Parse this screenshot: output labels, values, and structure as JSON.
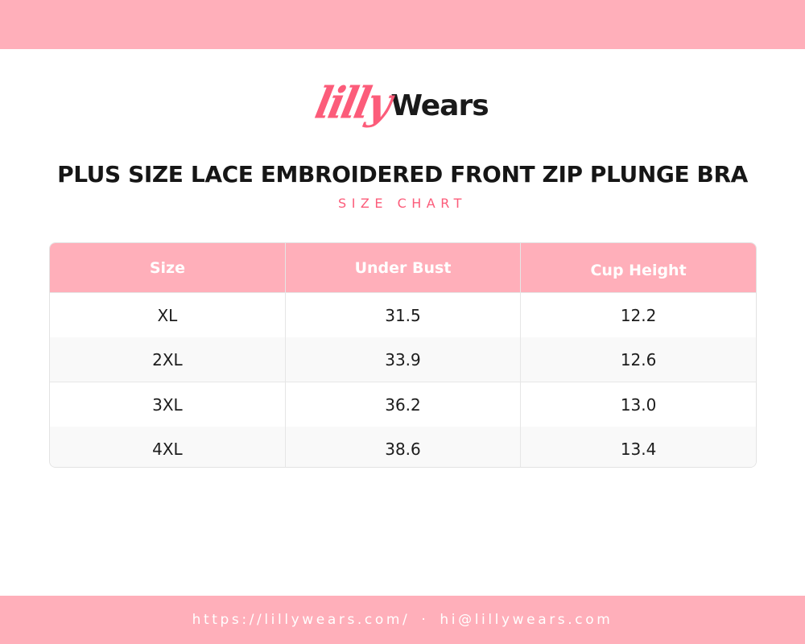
{
  "colors": {
    "accent_bar": "#ffafba",
    "brand_pink": "#fc5c7a",
    "text_dark": "#161616",
    "row_alt": "#f9f9f9"
  },
  "logo": {
    "part1": "lilly",
    "part2": "Wears"
  },
  "title": "PLUS SIZE LACE EMBROIDERED FRONT ZIP PLUNGE BRA",
  "subtitle": "SIZE CHART",
  "table": {
    "headers": [
      "Size",
      "Under Bust",
      "Cup Height"
    ],
    "rows": [
      [
        "XL",
        "31.5",
        "12.2"
      ],
      [
        "2XL",
        "33.9",
        "12.6"
      ],
      [
        "3XL",
        "36.2",
        "13.0"
      ],
      [
        "4XL",
        "38.6",
        "13.4"
      ]
    ]
  },
  "footer": {
    "website": "https://lillywears.com/",
    "separator": "·",
    "email": "hi@lillywears.com"
  }
}
